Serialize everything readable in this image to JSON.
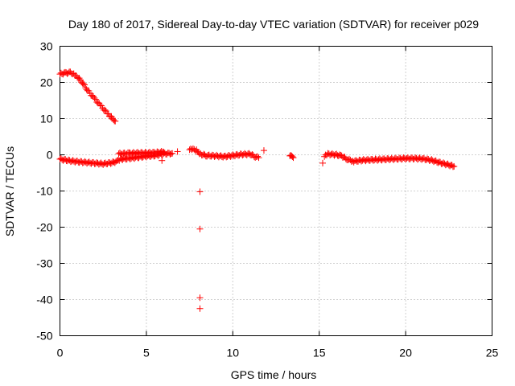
{
  "chart_data": {
    "type": "scatter",
    "title": "Day 180 of 2017, Sidereal Day-to-day VTEC variation (SDTVAR) for receiver p029",
    "xlabel": "GPS time / hours",
    "ylabel": "SDTVAR / TECUs",
    "xlim": [
      0,
      25
    ],
    "ylim": [
      -50,
      30
    ],
    "xticks": [
      0,
      5,
      10,
      15,
      20,
      25
    ],
    "yticks": [
      -50,
      -40,
      -30,
      -20,
      -10,
      0,
      10,
      20,
      30
    ],
    "grid": true,
    "marker": "+",
    "color": "#ff0000",
    "series": [
      {
        "name": "SDTVAR",
        "segments": [
          {
            "x": [
              0.0,
              0.3,
              0.6,
              0.8,
              1.0,
              1.3,
              1.6,
              2.0,
              2.4,
              2.8,
              3.1,
              3.2
            ],
            "y": [
              22.3,
              22.6,
              22.7,
              22.4,
              21.6,
              20.0,
              17.8,
              15.5,
              13.3,
              11.2,
              9.8,
              9.3
            ]
          },
          {
            "x": [
              0.0,
              0.5,
              1.0,
              1.5,
              2.0,
              2.5,
              3.0,
              3.3,
              3.5,
              4.0,
              4.5,
              5.0,
              5.5,
              6.0,
              6.5
            ],
            "y": [
              -1.2,
              -1.6,
              -1.9,
              -2.1,
              -2.3,
              -2.5,
              -2.2,
              -1.8,
              -1.2,
              -1.0,
              -0.7,
              -0.4,
              -0.2,
              0.3,
              0.4
            ]
          },
          {
            "x": [
              3.4,
              4.0,
              4.5,
              5.0,
              5.5,
              6.0
            ],
            "y": [
              0.3,
              0.4,
              0.5,
              0.5,
              0.6,
              0.8
            ]
          },
          {
            "x": [
              7.5,
              7.7,
              7.9,
              8.0,
              8.2,
              8.5,
              9.0,
              9.5,
              10.0,
              10.5,
              11.0,
              11.3,
              11.5
            ],
            "y": [
              1.4,
              1.5,
              1.2,
              0.7,
              0.1,
              -0.2,
              -0.3,
              -0.5,
              -0.2,
              0.1,
              0.2,
              -0.5,
              -0.8
            ]
          },
          {
            "x": [
              11.8
            ],
            "y": [
              1.2
            ]
          },
          {
            "x": [
              13.3,
              13.4,
              13.5
            ],
            "y": [
              -0.3,
              -0.5,
              -0.8
            ]
          },
          {
            "x": [
              15.3,
              15.5,
              16.0,
              16.3,
              16.6,
              17.0,
              17.5,
              18.0,
              18.5,
              19.0,
              19.5,
              20.0,
              20.5,
              21.0,
              21.5,
              22.0,
              22.5,
              22.8
            ],
            "y": [
              -0.5,
              0.2,
              0.0,
              -0.3,
              -1.2,
              -1.8,
              -1.5,
              -1.4,
              -1.3,
              -1.2,
              -1.1,
              -1.0,
              -1.0,
              -1.1,
              -1.5,
              -2.2,
              -2.8,
              -3.2
            ]
          },
          {
            "x": [
              15.2,
              8.1,
              8.1,
              8.1,
              8.1,
              5.9,
              6.8
            ],
            "y": [
              -2.3,
              -10.2,
              -20.5,
              -39.5,
              -42.5,
              -1.6,
              0.9
            ]
          }
        ]
      }
    ]
  }
}
